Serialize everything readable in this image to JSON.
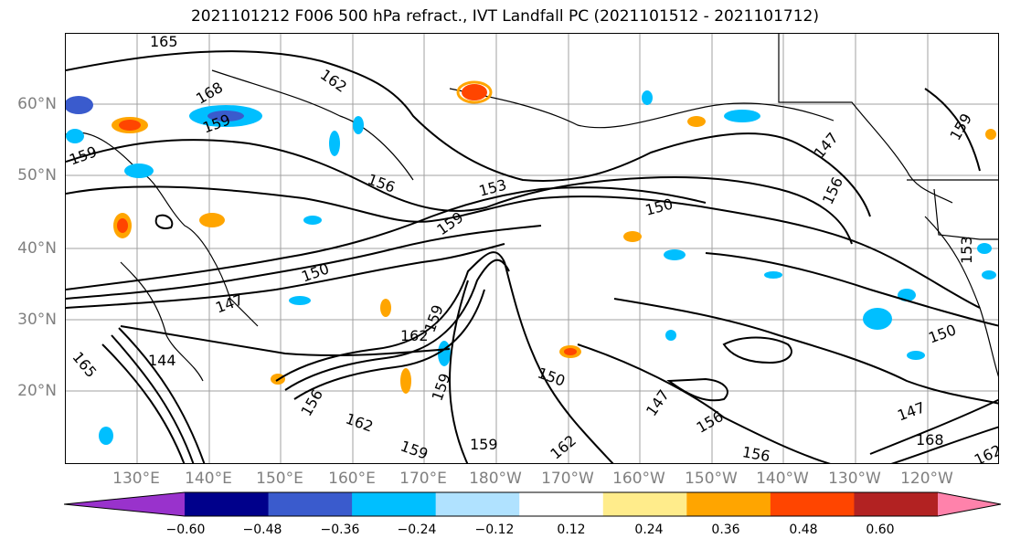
{
  "title": "2021101212 F006 500 hPa refract., IVT Landfall PC (2021101512 - 2021101712)",
  "map": {
    "lat_labels": [
      "60°N",
      "50°N",
      "40°N",
      "30°N",
      "20°N"
    ],
    "lon_labels": [
      "130°E",
      "140°E",
      "150°E",
      "160°E",
      "170°E",
      "180°W",
      "170°W",
      "160°W",
      "150°W",
      "140°W",
      "130°W",
      "120°W"
    ],
    "contour_labels": [
      "165",
      "162",
      "168",
      "159",
      "159",
      "156",
      "153",
      "150",
      "159",
      "150",
      "147",
      "144",
      "165",
      "162",
      "159",
      "156",
      "159",
      "150",
      "162",
      "147",
      "159",
      "156",
      "147",
      "150",
      "162",
      "159",
      "156",
      "159",
      "153",
      "156",
      "147",
      "162",
      "168"
    ],
    "grid_color": "#a0a0a0",
    "axis_label_color": "#808080"
  },
  "colorbar": {
    "ticks": [
      "−0.60",
      "−0.48",
      "−0.36",
      "−0.24",
      "−0.12",
      "0.12",
      "0.24",
      "0.36",
      "0.48",
      "0.60"
    ],
    "colors": [
      "#9932cc",
      "#00008b",
      "#3a5bcd",
      "#00bfff",
      "#b0e2ff",
      "#ffffff",
      "#ffec8b",
      "#ffa500",
      "#ff4500",
      "#b22222",
      "#ff82ab"
    ]
  }
}
